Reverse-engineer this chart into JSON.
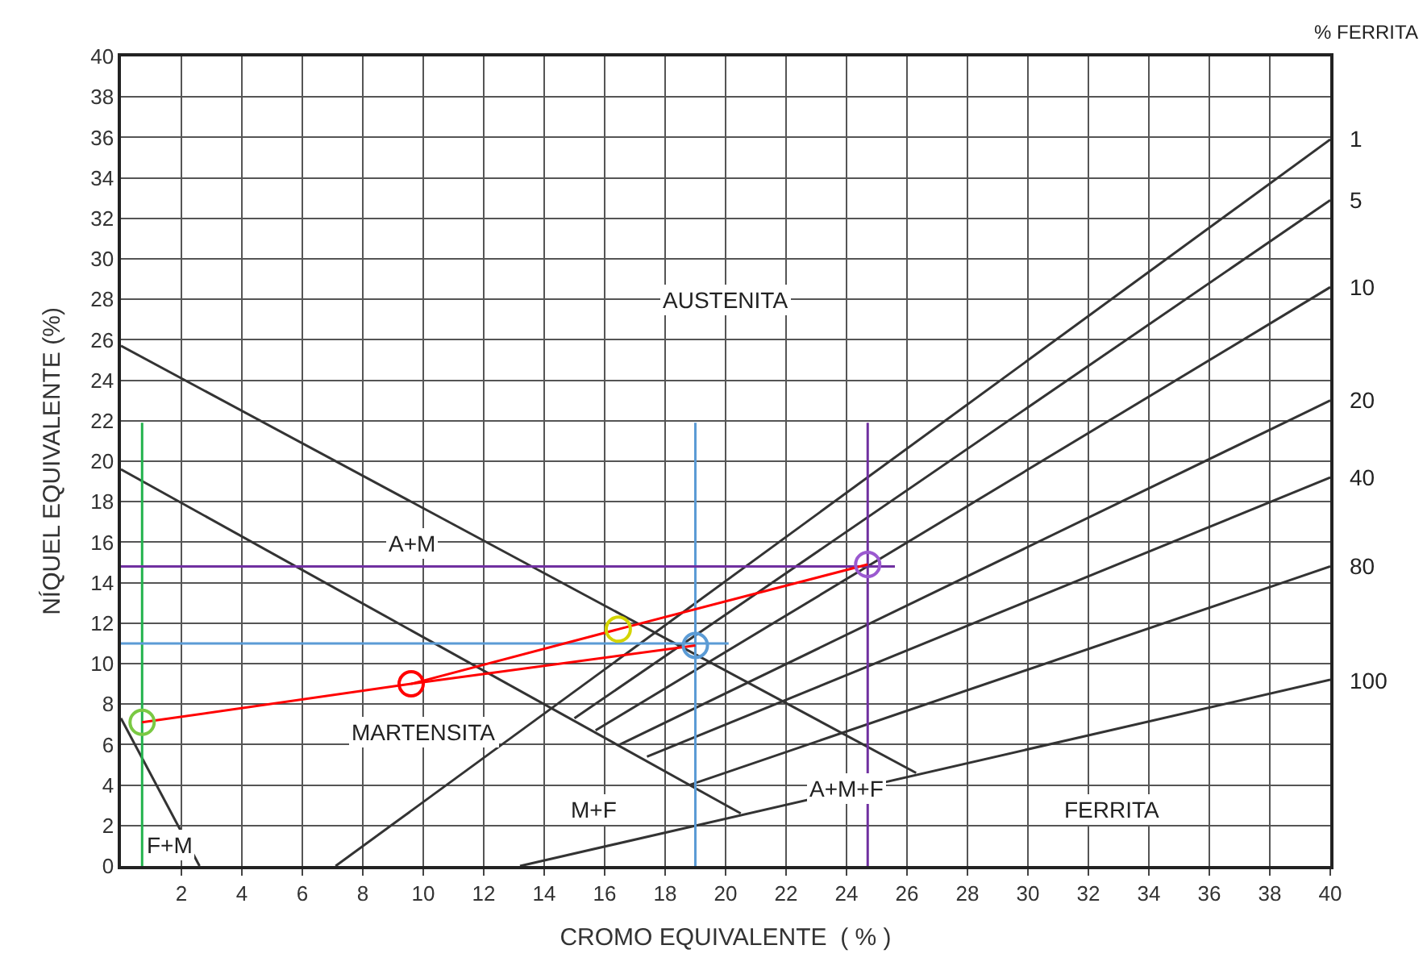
{
  "chart_data": {
    "type": "line",
    "xlabel": "CROMO EQUIVALENTE  ( % )",
    "ylabel": "NÍQUEL EQUIVALENTE (%)",
    "xlim": [
      0,
      40
    ],
    "ylim": [
      0,
      40
    ],
    "xticks": [
      2,
      4,
      6,
      8,
      10,
      12,
      14,
      16,
      18,
      20,
      22,
      24,
      26,
      28,
      30,
      32,
      34,
      36,
      38,
      40
    ],
    "yticks": [
      0,
      2,
      4,
      6,
      8,
      10,
      12,
      14,
      16,
      18,
      20,
      22,
      24,
      26,
      28,
      30,
      32,
      34,
      36,
      38,
      40
    ],
    "grid": true,
    "marker": "none",
    "line_style": "solid",
    "series": [
      {
        "color": "#333333",
        "x": [
          0,
          26.3
        ],
        "values": [
          25.7,
          4.6
        ]
      },
      {
        "color": "#333333",
        "x": [
          0,
          20.5
        ],
        "values": [
          19.6,
          2.6
        ]
      },
      {
        "color": "#333333",
        "x": [
          0,
          2.6
        ],
        "values": [
          7.3,
          0
        ]
      },
      {
        "name": "1",
        "color": "#333333",
        "x": [
          7.1,
          40
        ],
        "values": [
          0,
          35.9
        ]
      },
      {
        "name": "5",
        "color": "#333333",
        "x": [
          15.0,
          40
        ],
        "values": [
          7.3,
          32.9
        ]
      },
      {
        "name": "10",
        "color": "#333333",
        "x": [
          15.7,
          40
        ],
        "values": [
          6.7,
          28.6
        ]
      },
      {
        "name": "20",
        "color": "#333333",
        "x": [
          16.5,
          40
        ],
        "values": [
          6.0,
          23.0
        ]
      },
      {
        "name": "40",
        "color": "#333333",
        "x": [
          17.4,
          40
        ],
        "values": [
          5.4,
          19.2
        ]
      },
      {
        "name": "80",
        "color": "#333333",
        "x": [
          18.8,
          40
        ],
        "values": [
          4.0,
          14.8
        ]
      },
      {
        "name": "100",
        "color": "#333333",
        "x": [
          13.2,
          40
        ],
        "values": [
          0,
          9.2
        ]
      },
      {
        "color": "#22b24c",
        "x": [
          0.7,
          0.7
        ],
        "values": [
          0,
          21.9
        ]
      },
      {
        "color": "#5b9bd5",
        "x": [
          19.0,
          19.0
        ],
        "values": [
          0,
          21.9
        ]
      },
      {
        "color": "#7030a0",
        "x": [
          24.7,
          24.7
        ],
        "values": [
          0,
          21.9
        ]
      },
      {
        "color": "#7030a0",
        "x": [
          0,
          25.6
        ],
        "values": [
          14.8,
          14.8
        ]
      },
      {
        "color": "#5b9bd5",
        "x": [
          0,
          20.1
        ],
        "values": [
          11.0,
          11.0
        ]
      },
      {
        "color": "#ff0000",
        "x": [
          0.7,
          9.6
        ],
        "values": [
          7.1,
          9.0
        ]
      },
      {
        "color": "#ff0000",
        "x": [
          9.6,
          16.45,
          24.7
        ],
        "values": [
          9.0,
          11.7,
          14.9
        ]
      },
      {
        "color": "#ff0000",
        "x": [
          9.6,
          19.0
        ],
        "values": [
          9.0,
          10.9
        ]
      },
      {
        "type": "scatter",
        "marker": "circle",
        "color": "#7ac943",
        "x": [
          0.7
        ],
        "values": [
          7.1
        ]
      },
      {
        "type": "scatter",
        "marker": "circle",
        "color": "#ff0000",
        "x": [
          9.6
        ],
        "values": [
          9.0
        ]
      },
      {
        "type": "scatter",
        "marker": "circle",
        "color": "#d4d400",
        "x": [
          16.45
        ],
        "values": [
          11.7
        ]
      },
      {
        "type": "scatter",
        "marker": "circle",
        "color": "#5b9bd5",
        "x": [
          19.0
        ],
        "values": [
          10.9
        ]
      },
      {
        "type": "scatter",
        "marker": "circle",
        "color": "#9b59d0",
        "x": [
          24.7
        ],
        "values": [
          14.9
        ]
      }
    ],
    "annotations": [
      "% FERRITA",
      "AUSTENITA",
      "A+M",
      "MARTENSITA",
      "M+F",
      "A+M+F",
      "FERRITA",
      "F+M"
    ]
  }
}
